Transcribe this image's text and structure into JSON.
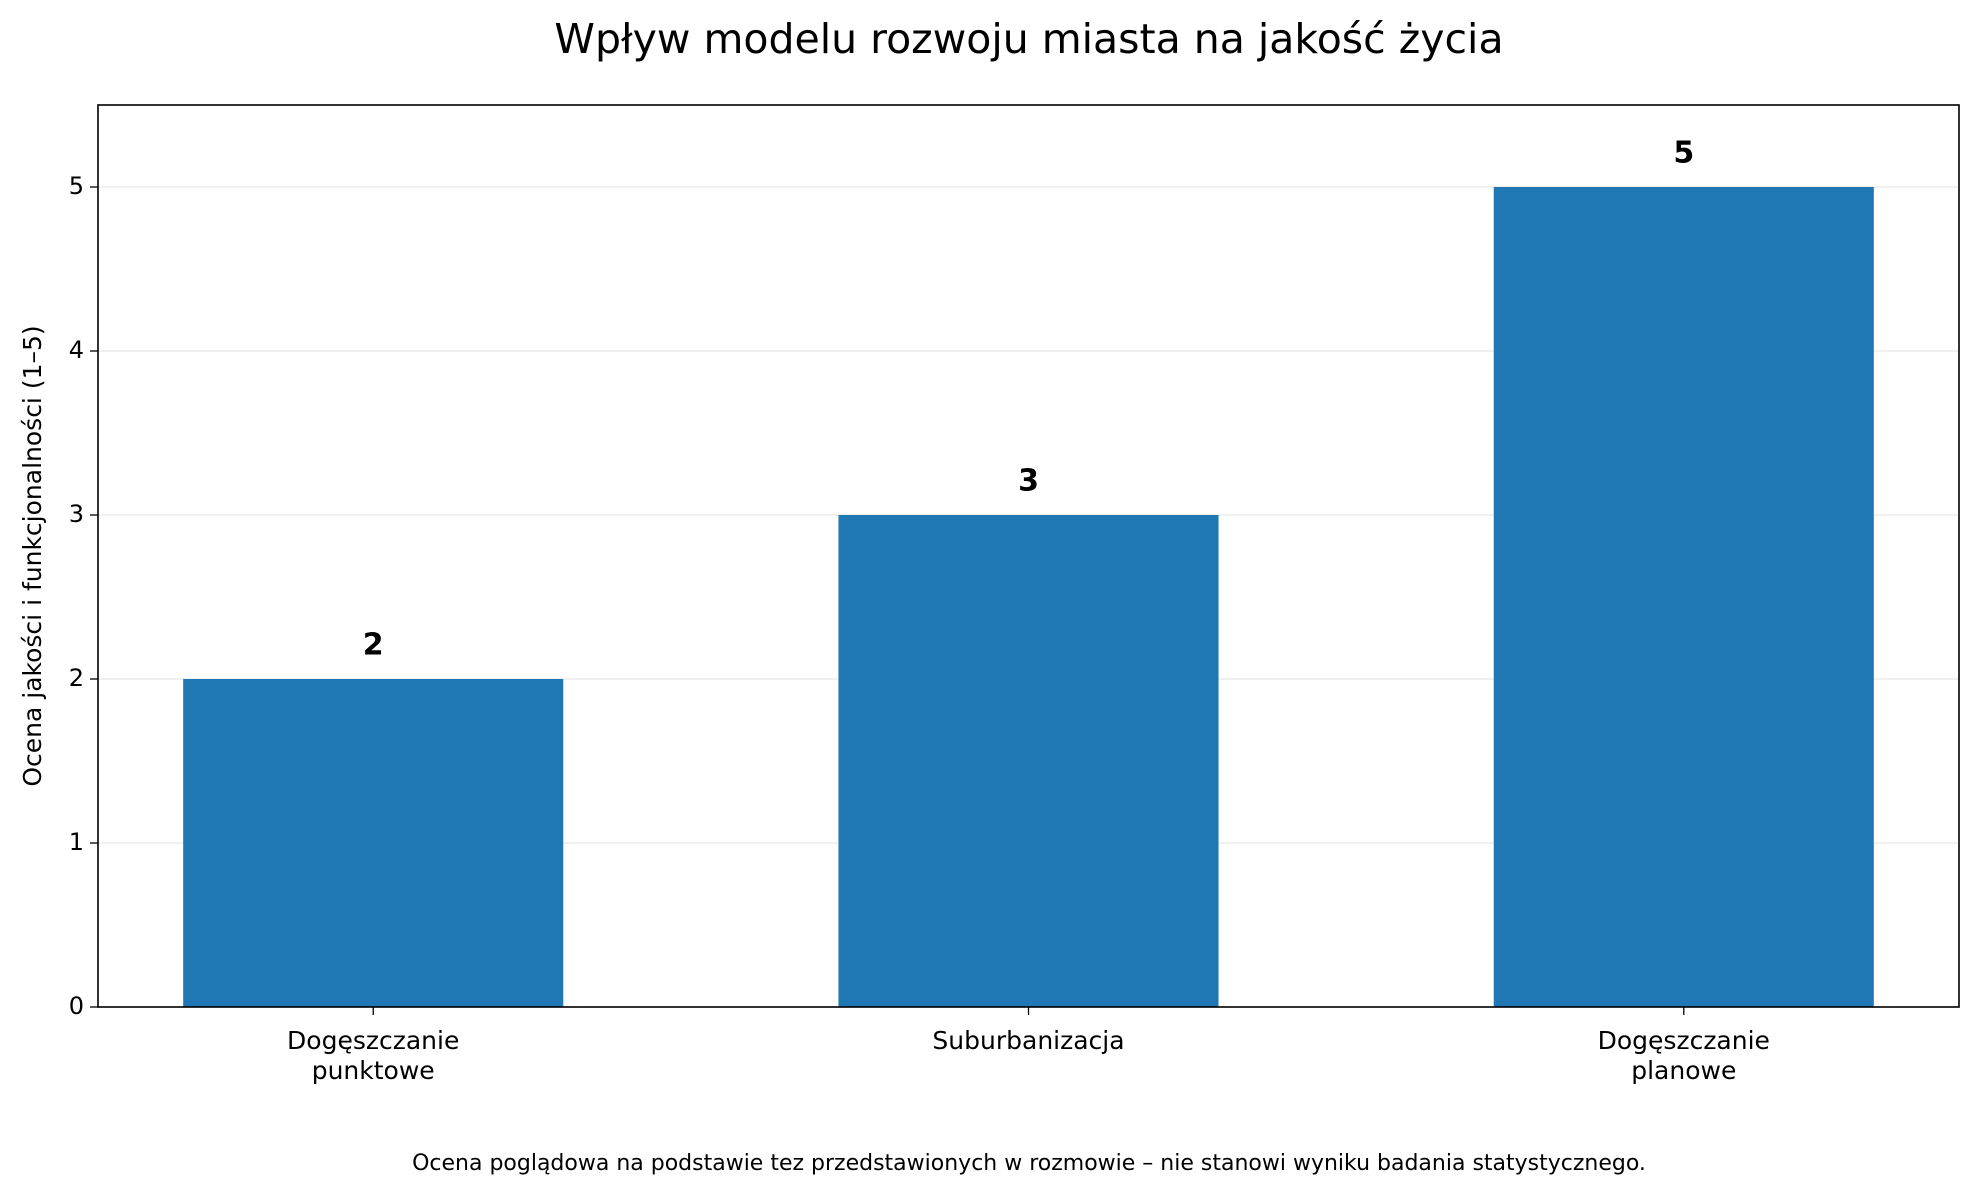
{
  "chart_data": {
    "type": "bar",
    "title": "Wpływ modelu rozwoju miasta na jakość życia",
    "ylabel": "Ocena jakości i funkcjonalności (1–5)",
    "footnote": "Ocena poglądowa na podstawie tez przedstawionych w rozmowie – nie stanowi wyniku badania statystycznego.",
    "categories": [
      "Dogęszczanie\npunktowe",
      "Suburbanizacja",
      "Dogęszczanie\nplanowe"
    ],
    "values": [
      2,
      3,
      5
    ],
    "color": "#1f77b4",
    "ylim": [
      0,
      5.5
    ],
    "yticks": [
      0,
      1,
      2,
      3,
      4,
      5
    ],
    "grid": true
  }
}
